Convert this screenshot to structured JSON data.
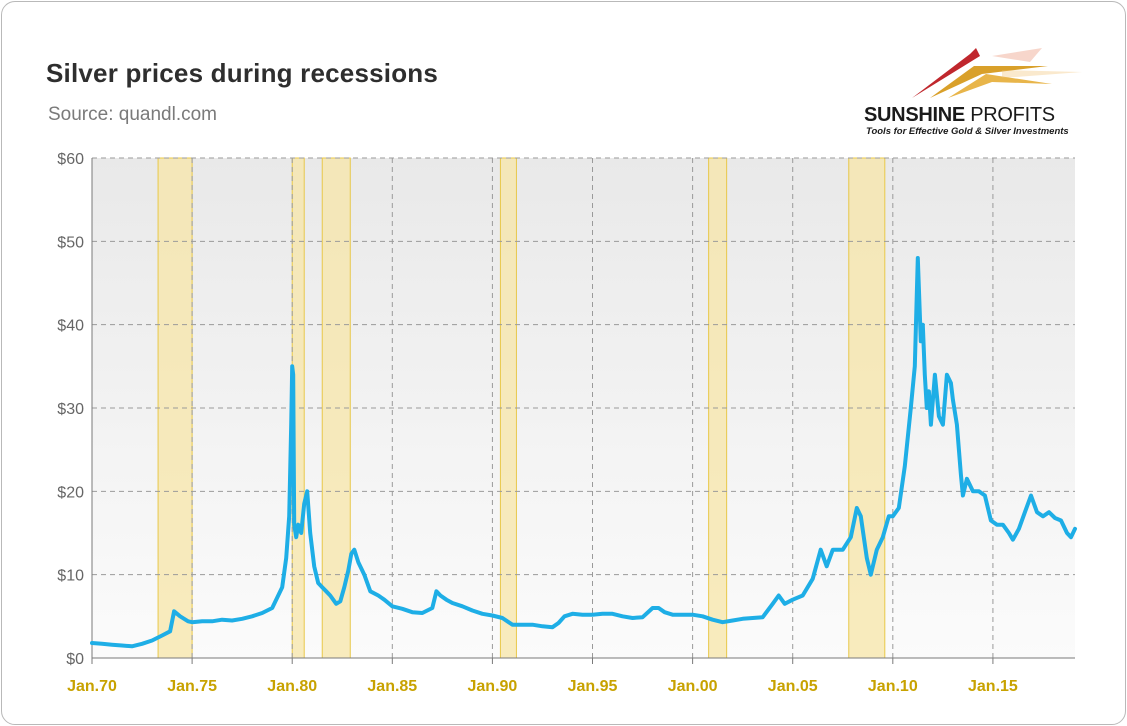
{
  "title": "Silver prices during recessions",
  "subtitle": "Source: quandl.com",
  "logo": {
    "name_bold": "SUNSHINE",
    "name_light": " PROFITS",
    "tagline": "Tools for Effective Gold & Silver Investments"
  },
  "colors": {
    "line": "#1eaee6",
    "recession_fill": "#f7e6a8",
    "recession_edge": "#e8c84a",
    "xtick": "#c8a200",
    "plot_bg": "#efefef"
  },
  "chart_data": {
    "type": "line",
    "title": "Silver prices during recessions",
    "xlabel": "",
    "ylabel": "",
    "xlim": [
      1970.0,
      2019.1
    ],
    "ylim": [
      0,
      60
    ],
    "y_ticks": [
      0,
      10,
      20,
      30,
      40,
      50,
      60
    ],
    "y_tick_labels": [
      "$0",
      "$10",
      "$20",
      "$30",
      "$40",
      "$50",
      "$60"
    ],
    "x_ticks": [
      1970,
      1975,
      1980,
      1985,
      1990,
      1995,
      2000,
      2005,
      2010,
      2015
    ],
    "x_tick_labels": [
      "Jan.70",
      "Jan.75",
      "Jan.80",
      "Jan.85",
      "Jan.90",
      "Jan.95",
      "Jan.00",
      "Jan.05",
      "Jan.10",
      "Jan.15"
    ],
    "grid": true,
    "recessions": [
      [
        1973.3,
        1975.0
      ],
      [
        1980.0,
        1980.6
      ],
      [
        1981.5,
        1982.9
      ],
      [
        1990.4,
        1991.2
      ],
      [
        2000.8,
        2001.7
      ],
      [
        2007.8,
        2009.6
      ]
    ],
    "series": [
      {
        "name": "",
        "x": [
          1970.0,
          1970.5,
          1971.0,
          1971.5,
          1972.0,
          1972.5,
          1973.0,
          1973.5,
          1973.9,
          1974.1,
          1974.4,
          1974.8,
          1975.0,
          1975.5,
          1976.0,
          1976.5,
          1977.0,
          1977.5,
          1978.0,
          1978.5,
          1979.0,
          1979.5,
          1979.7,
          1979.85,
          1979.95,
          1980.0,
          1980.05,
          1980.1,
          1980.2,
          1980.3,
          1980.45,
          1980.6,
          1980.75,
          1980.9,
          1981.1,
          1981.3,
          1981.5,
          1981.7,
          1981.9,
          1982.2,
          1982.4,
          1982.6,
          1982.8,
          1982.95,
          1983.1,
          1983.3,
          1983.6,
          1983.9,
          1984.3,
          1984.6,
          1985.0,
          1985.5,
          1986.0,
          1986.5,
          1987.0,
          1987.2,
          1987.4,
          1987.7,
          1988.0,
          1988.5,
          1989.0,
          1989.5,
          1990.0,
          1990.5,
          1991.0,
          1991.5,
          1992.0,
          1992.5,
          1993.0,
          1993.3,
          1993.6,
          1994.0,
          1994.5,
          1995.0,
          1995.5,
          1996.0,
          1996.5,
          1997.0,
          1997.5,
          1998.0,
          1998.3,
          1998.6,
          1999.0,
          1999.5,
          2000.0,
          2000.5,
          2001.0,
          2001.5,
          2002.0,
          2002.5,
          2003.0,
          2003.5,
          2004.0,
          2004.3,
          2004.6,
          2005.0,
          2005.5,
          2006.0,
          2006.4,
          2006.7,
          2007.0,
          2007.5,
          2007.9,
          2008.2,
          2008.4,
          2008.7,
          2008.9,
          2009.2,
          2009.5,
          2009.8,
          2010.0,
          2010.3,
          2010.6,
          2010.9,
          2011.1,
          2011.25,
          2011.4,
          2011.5,
          2011.6,
          2011.7,
          2011.8,
          2011.9,
          2012.0,
          2012.1,
          2012.3,
          2012.5,
          2012.7,
          2012.9,
          2013.0,
          2013.2,
          2013.4,
          2013.5,
          2013.7,
          2014.0,
          2014.3,
          2014.6,
          2014.9,
          2015.2,
          2015.5,
          2015.8,
          2016.0,
          2016.3,
          2016.6,
          2016.9,
          2017.2,
          2017.5,
          2017.8,
          2018.1,
          2018.4,
          2018.7,
          2018.9,
          2019.1
        ],
        "values": [
          1.8,
          1.7,
          1.6,
          1.5,
          1.4,
          1.7,
          2.1,
          2.7,
          3.2,
          5.6,
          5.0,
          4.4,
          4.3,
          4.4,
          4.4,
          4.6,
          4.5,
          4.7,
          5.0,
          5.4,
          6.0,
          8.5,
          12.0,
          17.0,
          28.0,
          35.0,
          34.0,
          16.0,
          14.5,
          16.0,
          15.0,
          18.5,
          20.0,
          15.0,
          11.0,
          9.0,
          8.5,
          8.0,
          7.5,
          6.5,
          6.8,
          8.5,
          10.5,
          12.5,
          13.0,
          11.5,
          10.0,
          8.0,
          7.5,
          7.0,
          6.2,
          5.9,
          5.5,
          5.4,
          6.0,
          8.0,
          7.5,
          7.0,
          6.6,
          6.2,
          5.7,
          5.3,
          5.1,
          4.8,
          4.0,
          4.0,
          4.0,
          3.8,
          3.7,
          4.2,
          5.0,
          5.3,
          5.2,
          5.2,
          5.3,
          5.3,
          5.0,
          4.8,
          4.9,
          6.0,
          6.0,
          5.5,
          5.2,
          5.2,
          5.2,
          5.0,
          4.6,
          4.3,
          4.5,
          4.7,
          4.8,
          4.9,
          6.5,
          7.5,
          6.5,
          7.0,
          7.5,
          9.5,
          13.0,
          11.0,
          13.0,
          13.0,
          14.5,
          18.0,
          17.0,
          12.0,
          10.0,
          13.0,
          14.5,
          17.0,
          17.0,
          18.0,
          23.0,
          30.0,
          35.0,
          48.0,
          38.0,
          40.0,
          34.0,
          30.0,
          32.0,
          28.0,
          31.0,
          34.0,
          29.0,
          28.0,
          34.0,
          33.0,
          31.0,
          28.0,
          22.0,
          19.5,
          21.5,
          20.0,
          20.0,
          19.5,
          16.5,
          16.0,
          16.0,
          15.0,
          14.2,
          15.5,
          17.5,
          19.5,
          17.5,
          17.0,
          17.5,
          16.8,
          16.5,
          15.0,
          14.5,
          15.5
        ]
      }
    ]
  }
}
